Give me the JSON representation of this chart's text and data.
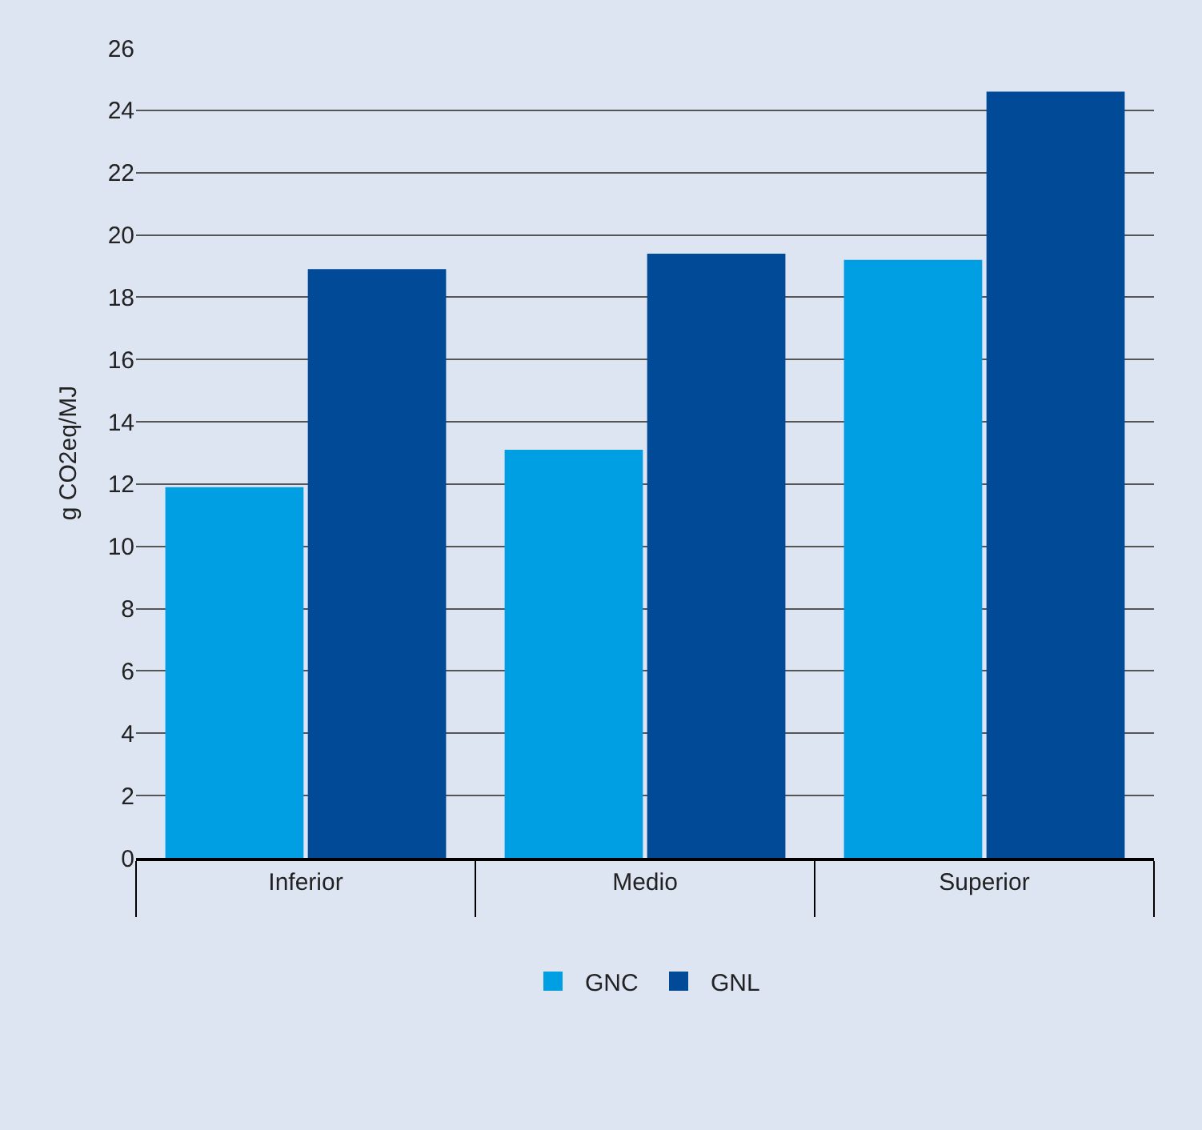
{
  "chart_data": {
    "type": "bar",
    "ylabel": "g CO2eq/MJ",
    "categories": [
      "Inferior",
      "Medio",
      "Superior"
    ],
    "series": [
      {
        "name": "GNC",
        "color": "#009fe3",
        "values": [
          11.9,
          13.1,
          19.2
        ]
      },
      {
        "name": "GNL",
        "color": "#004a97",
        "values": [
          18.9,
          19.4,
          24.6
        ]
      }
    ],
    "ylim": [
      0,
      26
    ],
    "yticks": [
      0,
      2,
      4,
      6,
      8,
      10,
      12,
      14,
      16,
      18,
      20,
      22,
      24,
      26
    ],
    "grid": "y",
    "legend": "bottom"
  }
}
